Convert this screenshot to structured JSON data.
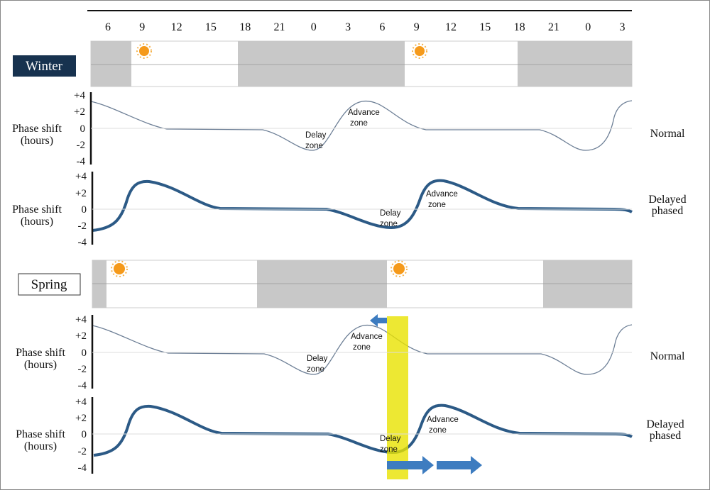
{
  "time_axis": [
    "6",
    "9",
    "12",
    "15",
    "18",
    "21",
    "0",
    "3",
    "6",
    "9",
    "12",
    "15",
    "18",
    "21",
    "0",
    "3"
  ],
  "seasons": [
    {
      "label": "Winter",
      "panels": [
        {
          "y_label": [
            "Phase shift",
            "(hours)"
          ],
          "y_ticks": [
            "+4",
            "+2",
            "0",
            "-2",
            "-4"
          ],
          "delay_zone": [
            "Delay",
            "zone"
          ],
          "advance_zone": [
            "Advance",
            "zone"
          ],
          "condition": [
            "Normal"
          ]
        },
        {
          "y_label": [
            "Phase shift",
            "(hours)"
          ],
          "y_ticks": [
            "+4",
            "+2",
            "0",
            "-2",
            "-4"
          ],
          "delay_zone": [
            "Delay",
            "zone"
          ],
          "advance_zone": [
            "Advance",
            "zone"
          ],
          "condition": [
            "Delayed",
            "phased"
          ]
        }
      ]
    },
    {
      "label": "Spring",
      "panels": [
        {
          "y_label": [
            "Phase shift",
            "(hours)"
          ],
          "y_ticks": [
            "+4",
            "+2",
            "0",
            "-2",
            "-4"
          ],
          "delay_zone": [
            "Delay",
            "zone"
          ],
          "advance_zone": [
            "Advance",
            "zone"
          ],
          "condition": [
            "Normal"
          ]
        },
        {
          "y_label": [
            "Phase shift",
            "(hours)"
          ],
          "y_ticks": [
            "+4",
            "+2",
            "0",
            "-2",
            "-4"
          ],
          "delay_zone": [
            "Delay",
            "zone"
          ],
          "advance_zone": [
            "Advance",
            "zone"
          ],
          "condition": [
            "Delayed",
            "phased"
          ]
        }
      ]
    }
  ]
}
